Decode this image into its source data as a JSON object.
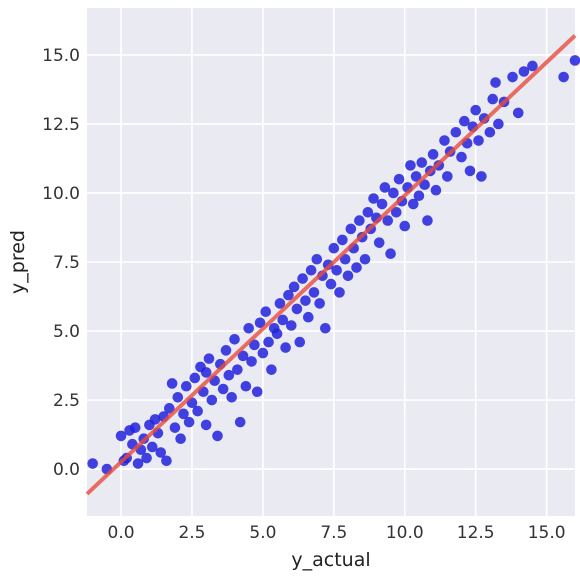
{
  "chart_data": {
    "type": "scatter",
    "title": "",
    "xlabel": "y_actual",
    "ylabel": "y_pred",
    "xlim": [
      -1.2,
      16.0
    ],
    "ylim": [
      -1.7,
      16.7
    ],
    "xticks": [
      "0.0",
      "2.5",
      "5.0",
      "7.5",
      "10.0",
      "12.5",
      "15.0"
    ],
    "xtick_values": [
      0,
      2.5,
      5,
      7.5,
      10,
      12.5,
      15
    ],
    "yticks": [
      "0.0",
      "2.5",
      "5.0",
      "7.5",
      "10.0",
      "12.5",
      "15.0"
    ],
    "ytick_values": [
      0,
      2.5,
      5,
      7.5,
      10,
      12.5,
      15
    ],
    "grid": true,
    "background_color": "#EAEAF2",
    "grid_color": "#FFFFFF",
    "series": [
      {
        "marker_color": "#2222DD",
        "points": [
          [
            -1.0,
            0.2
          ],
          [
            -0.5,
            0.0
          ],
          [
            0.0,
            1.2
          ],
          [
            0.1,
            0.3
          ],
          [
            0.2,
            0.4
          ],
          [
            0.3,
            1.4
          ],
          [
            0.4,
            0.9
          ],
          [
            0.5,
            1.5
          ],
          [
            0.6,
            0.2
          ],
          [
            0.7,
            0.7
          ],
          [
            0.8,
            1.1
          ],
          [
            0.9,
            0.4
          ],
          [
            1.0,
            1.6
          ],
          [
            1.1,
            0.8
          ],
          [
            1.2,
            1.8
          ],
          [
            1.3,
            1.3
          ],
          [
            1.4,
            0.6
          ],
          [
            1.5,
            1.9
          ],
          [
            1.6,
            0.3
          ],
          [
            1.7,
            2.2
          ],
          [
            1.8,
            3.1
          ],
          [
            1.9,
            1.5
          ],
          [
            2.0,
            2.6
          ],
          [
            2.1,
            1.1
          ],
          [
            2.2,
            2.0
          ],
          [
            2.3,
            3.0
          ],
          [
            2.4,
            1.7
          ],
          [
            2.5,
            2.4
          ],
          [
            2.6,
            3.3
          ],
          [
            2.7,
            2.1
          ],
          [
            2.8,
            3.7
          ],
          [
            2.9,
            2.8
          ],
          [
            3.0,
            3.5
          ],
          [
            3.0,
            1.6
          ],
          [
            3.1,
            4.0
          ],
          [
            3.2,
            2.5
          ],
          [
            3.3,
            3.2
          ],
          [
            3.4,
            1.2
          ],
          [
            3.5,
            3.8
          ],
          [
            3.6,
            2.9
          ],
          [
            3.7,
            4.3
          ],
          [
            3.8,
            3.4
          ],
          [
            3.9,
            2.6
          ],
          [
            4.0,
            4.7
          ],
          [
            4.1,
            3.6
          ],
          [
            4.2,
            1.7
          ],
          [
            4.3,
            4.1
          ],
          [
            4.4,
            3.0
          ],
          [
            4.5,
            5.1
          ],
          [
            4.6,
            3.9
          ],
          [
            4.7,
            4.5
          ],
          [
            4.8,
            2.8
          ],
          [
            4.9,
            5.3
          ],
          [
            5.0,
            4.2
          ],
          [
            5.1,
            5.7
          ],
          [
            5.2,
            4.6
          ],
          [
            5.3,
            3.6
          ],
          [
            5.4,
            5.1
          ],
          [
            5.5,
            4.9
          ],
          [
            5.6,
            6.0
          ],
          [
            5.7,
            5.4
          ],
          [
            5.8,
            4.4
          ],
          [
            5.9,
            6.3
          ],
          [
            6.0,
            5.2
          ],
          [
            6.1,
            6.6
          ],
          [
            6.2,
            5.8
          ],
          [
            6.3,
            4.6
          ],
          [
            6.4,
            6.9
          ],
          [
            6.5,
            6.1
          ],
          [
            6.6,
            5.5
          ],
          [
            6.7,
            7.2
          ],
          [
            6.8,
            6.4
          ],
          [
            6.9,
            7.6
          ],
          [
            7.0,
            6.0
          ],
          [
            7.1,
            7.0
          ],
          [
            7.2,
            5.1
          ],
          [
            7.3,
            7.4
          ],
          [
            7.4,
            6.7
          ],
          [
            7.5,
            8.0
          ],
          [
            7.6,
            7.2
          ],
          [
            7.7,
            6.4
          ],
          [
            7.8,
            8.3
          ],
          [
            7.9,
            7.6
          ],
          [
            8.0,
            7.0
          ],
          [
            8.1,
            8.7
          ],
          [
            8.2,
            8.0
          ],
          [
            8.3,
            7.3
          ],
          [
            8.4,
            9.0
          ],
          [
            8.5,
            8.4
          ],
          [
            8.6,
            7.6
          ],
          [
            8.7,
            9.3
          ],
          [
            8.8,
            8.7
          ],
          [
            8.9,
            9.8
          ],
          [
            9.0,
            9.1
          ],
          [
            9.1,
            8.2
          ],
          [
            9.2,
            9.6
          ],
          [
            9.3,
            10.2
          ],
          [
            9.4,
            9.0
          ],
          [
            9.5,
            7.8
          ],
          [
            9.6,
            10.0
          ],
          [
            9.7,
            9.3
          ],
          [
            9.8,
            10.5
          ],
          [
            9.9,
            9.7
          ],
          [
            10.0,
            8.8
          ],
          [
            10.1,
            10.2
          ],
          [
            10.2,
            11.0
          ],
          [
            10.3,
            9.6
          ],
          [
            10.4,
            10.6
          ],
          [
            10.5,
            9.9
          ],
          [
            10.6,
            11.1
          ],
          [
            10.7,
            10.3
          ],
          [
            10.8,
            9.0
          ],
          [
            10.9,
            10.8
          ],
          [
            11.0,
            11.4
          ],
          [
            11.1,
            10.1
          ],
          [
            11.2,
            11.0
          ],
          [
            11.4,
            11.9
          ],
          [
            11.5,
            10.6
          ],
          [
            11.6,
            11.5
          ],
          [
            11.8,
            12.2
          ],
          [
            12.0,
            11.3
          ],
          [
            12.1,
            12.6
          ],
          [
            12.2,
            11.8
          ],
          [
            12.3,
            10.8
          ],
          [
            12.4,
            12.4
          ],
          [
            12.5,
            13.0
          ],
          [
            12.6,
            11.9
          ],
          [
            12.7,
            10.6
          ],
          [
            12.8,
            12.7
          ],
          [
            13.0,
            12.2
          ],
          [
            13.1,
            13.4
          ],
          [
            13.2,
            14.0
          ],
          [
            13.3,
            12.5
          ],
          [
            13.5,
            13.3
          ],
          [
            13.8,
            14.2
          ],
          [
            14.0,
            12.9
          ],
          [
            14.2,
            14.4
          ],
          [
            14.5,
            14.6
          ],
          [
            15.6,
            14.2
          ],
          [
            16.0,
            14.8
          ]
        ]
      }
    ],
    "regression_line": {
      "color": "#E74C3C",
      "from": [
        -1.2,
        -0.9
      ],
      "to": [
        16.0,
        15.7
      ]
    }
  }
}
